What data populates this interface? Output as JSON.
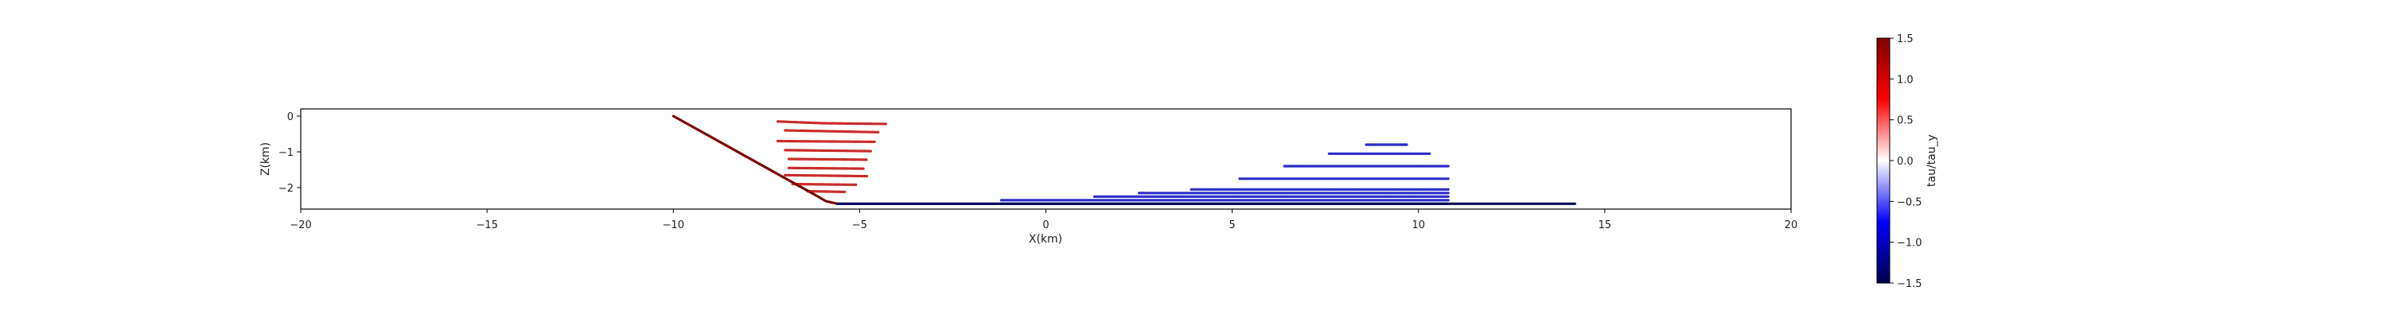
{
  "chart_data": {
    "type": "scatter",
    "title": "",
    "xlabel": "X(km)",
    "ylabel": "Z(km)",
    "xlim": [
      -20,
      20
    ],
    "ylim": [
      -2.6,
      0.2
    ],
    "xticks": [
      "−20",
      "−15",
      "−10",
      "−5",
      "0",
      "5",
      "10",
      "15",
      "20"
    ],
    "xtick_values": [
      -20,
      -15,
      -10,
      -5,
      0,
      5,
      10,
      15,
      20
    ],
    "yticks": [
      "0",
      "−1",
      "−2"
    ],
    "ytick_values": [
      0,
      -1,
      -2
    ],
    "grid": false,
    "colorbar": {
      "label": "tau/tau_y",
      "range": [
        -1.5,
        1.5
      ],
      "ticks": [
        "1.5",
        "1.0",
        "0.5",
        "0.0",
        "−0.5",
        "−1.0",
        "−1.5"
      ],
      "tick_values": [
        1.5,
        1.0,
        0.5,
        0.0,
        -0.5,
        -1.0,
        -1.5
      ],
      "colormap": "seismic"
    },
    "fault": {
      "color": "#7a0a0a",
      "points": [
        [
          -10.0,
          0.0
        ],
        [
          -6.2,
          -2.2
        ],
        [
          -5.9,
          -2.38
        ],
        [
          -5.6,
          -2.45
        ]
      ]
    },
    "fault_flat": {
      "color": "#0a0a5a",
      "points": [
        [
          -5.6,
          -2.45
        ],
        [
          14.2,
          -2.45
        ]
      ]
    },
    "series": [
      {
        "values": [
          [
            -7.2,
            -0.15
          ],
          [
            -6.0,
            -0.2
          ],
          [
            -4.3,
            -0.22
          ]
        ],
        "color": "#c41a1a"
      },
      {
        "values": [
          [
            -7.0,
            -0.4
          ],
          [
            -4.5,
            -0.45
          ]
        ],
        "color": "#c41a1a"
      },
      {
        "values": [
          [
            -7.2,
            -0.7
          ],
          [
            -4.6,
            -0.72
          ]
        ],
        "color": "#c41a1a"
      },
      {
        "values": [
          [
            -7.0,
            -0.95
          ],
          [
            -4.7,
            -0.98
          ]
        ],
        "color": "#c41a1a"
      },
      {
        "values": [
          [
            -6.9,
            -1.2
          ],
          [
            -4.8,
            -1.22
          ]
        ],
        "color": "#c41a1a"
      },
      {
        "values": [
          [
            -6.9,
            -1.45
          ],
          [
            -4.9,
            -1.47
          ]
        ],
        "color": "#c41a1a"
      },
      {
        "values": [
          [
            -7.0,
            -1.65
          ],
          [
            -4.8,
            -1.68
          ]
        ],
        "color": "#c41a1a"
      },
      {
        "values": [
          [
            -6.8,
            -1.9
          ],
          [
            -5.1,
            -1.92
          ]
        ],
        "color": "#c41a1a"
      },
      {
        "values": [
          [
            -6.4,
            -2.1
          ],
          [
            -5.4,
            -2.12
          ]
        ],
        "color": "#c41a1a"
      },
      {
        "values": [
          [
            8.6,
            -0.8
          ],
          [
            9.7,
            -0.8
          ]
        ],
        "color": "#1a1ac4"
      },
      {
        "values": [
          [
            7.6,
            -1.05
          ],
          [
            10.3,
            -1.05
          ]
        ],
        "color": "#1a1ac4"
      },
      {
        "values": [
          [
            6.4,
            -1.4
          ],
          [
            10.8,
            -1.4
          ]
        ],
        "color": "#1a1ac4"
      },
      {
        "values": [
          [
            5.2,
            -1.75
          ],
          [
            10.8,
            -1.75
          ]
        ],
        "color": "#1a1ac4"
      },
      {
        "values": [
          [
            3.9,
            -2.05
          ],
          [
            10.8,
            -2.05
          ]
        ],
        "color": "#1a1ac4"
      },
      {
        "values": [
          [
            2.5,
            -2.15
          ],
          [
            10.8,
            -2.15
          ]
        ],
        "color": "#1a1ac4"
      },
      {
        "values": [
          [
            1.3,
            -2.25
          ],
          [
            10.8,
            -2.25
          ]
        ],
        "color": "#1a1ac4"
      },
      {
        "values": [
          [
            -1.2,
            -2.35
          ],
          [
            10.8,
            -2.35
          ]
        ],
        "color": "#1a1ac4"
      },
      {
        "values": [
          [
            -5.5,
            -2.45
          ],
          [
            10.8,
            -2.45
          ]
        ],
        "color": "#1a1ac4"
      }
    ]
  }
}
